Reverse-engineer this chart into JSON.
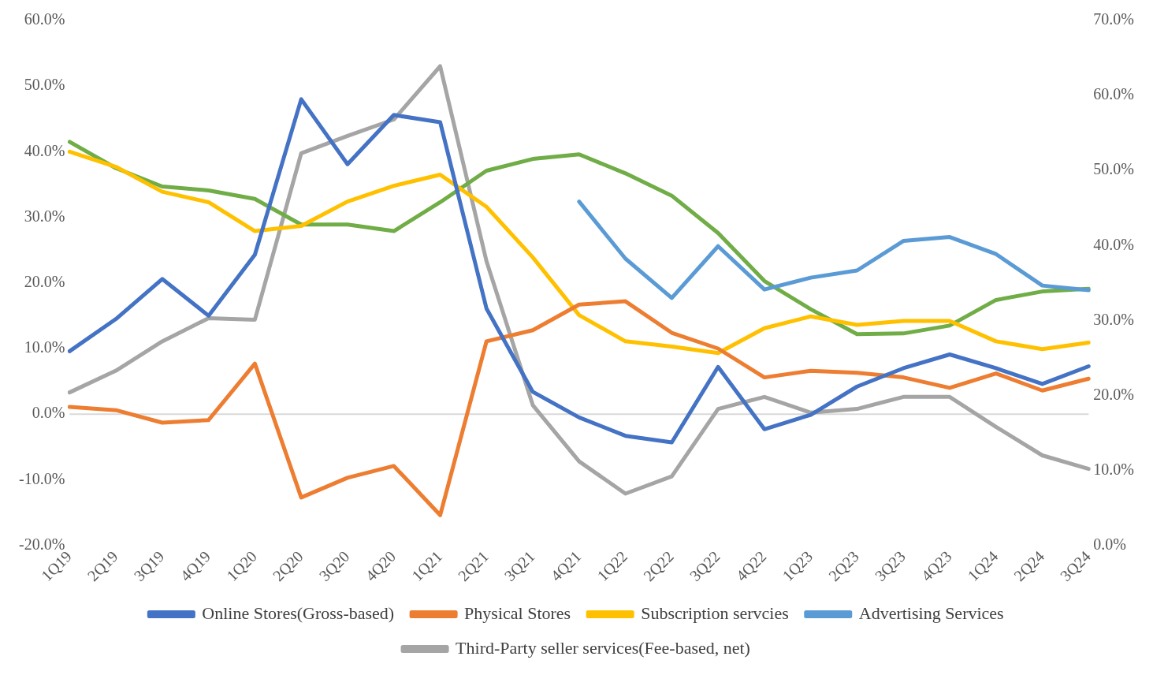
{
  "chart_data": {
    "type": "line",
    "categories": [
      "1Q19",
      "2Q19",
      "3Q19",
      "4Q19",
      "1Q20",
      "2Q20",
      "3Q20",
      "4Q20",
      "1Q21",
      "2Q21",
      "3Q21",
      "4Q21",
      "1Q22",
      "2Q22",
      "3Q22",
      "4Q22",
      "1Q23",
      "2Q23",
      "3Q23",
      "4Q23",
      "1Q24",
      "2Q24",
      "3Q24"
    ],
    "series": [
      {
        "name": "Online Stores(Gross-based)",
        "color": "#4472c4",
        "values": [
          9.6,
          14.5,
          20.6,
          15.0,
          24.3,
          48.0,
          38.1,
          45.6,
          44.5,
          16.1,
          3.4,
          -0.5,
          -3.3,
          -4.3,
          7.2,
          -2.3,
          -0.1,
          4.2,
          7.0,
          9.1,
          7.0,
          4.6,
          7.3
        ]
      },
      {
        "name": "Physical Stores",
        "color": "#ed7d31",
        "values": [
          1.1,
          0.6,
          -1.3,
          -0.9,
          7.7,
          -12.7,
          -9.7,
          -7.9,
          -15.4,
          11.1,
          12.8,
          16.7,
          17.2,
          12.4,
          10.0,
          5.6,
          6.6,
          6.3,
          5.6,
          4.0,
          6.2,
          3.6,
          5.4
        ]
      },
      {
        "name": "Subscription servcies",
        "color": "#ffc000",
        "values": [
          40.0,
          37.7,
          33.9,
          32.3,
          27.9,
          28.7,
          32.4,
          34.8,
          36.5,
          31.6,
          23.9,
          15.1,
          11.1,
          10.3,
          9.3,
          13.1,
          14.9,
          13.6,
          14.2,
          14.2,
          11.1,
          9.9,
          10.9
        ]
      },
      {
        "name": "Advertising Services",
        "color": "#5b9bd5",
        "values": [
          null,
          null,
          null,
          null,
          null,
          null,
          null,
          null,
          null,
          null,
          null,
          32.4,
          23.7,
          17.7,
          25.6,
          19.0,
          20.8,
          21.9,
          26.4,
          27.0,
          24.4,
          19.6,
          18.9
        ]
      },
      {
        "color": "#70ad47",
        "values": [
          41.5,
          37.5,
          34.7,
          34.1,
          32.8,
          28.9,
          28.9,
          27.9,
          32.3,
          37.1,
          38.9,
          39.6,
          36.7,
          33.3,
          27.6,
          20.3,
          16.0,
          12.2,
          12.3,
          13.5,
          17.4,
          18.7,
          19.1
        ]
      },
      {
        "name": "Third-Party seller services(Fee-based, net)",
        "color": "#a5a5a5",
        "axis": "y2",
        "values": [
          20.4,
          23.3,
          27.2,
          30.3,
          30.1,
          52.3,
          54.6,
          56.8,
          63.9,
          37.9,
          18.7,
          11.2,
          6.9,
          9.2,
          18.2,
          19.8,
          17.7,
          18.2,
          19.8,
          19.8,
          15.8,
          12.0,
          10.2
        ]
      }
    ],
    "ylim": [
      -20,
      60
    ],
    "yticks": [
      {
        "value": -20,
        "label": "-20.0%"
      },
      {
        "value": -10,
        "label": "-10.0%"
      },
      {
        "value": 0,
        "label": "0.0%"
      },
      {
        "value": 10,
        "label": "10.0%"
      },
      {
        "value": 20,
        "label": "20.0%"
      },
      {
        "value": 30,
        "label": "30.0%"
      },
      {
        "value": 40,
        "label": "40.0%"
      },
      {
        "value": 50,
        "label": "50.0%"
      },
      {
        "value": 60,
        "label": "60.0%"
      }
    ],
    "y2lim": [
      0,
      70
    ],
    "y2ticks": [
      {
        "value": 0,
        "label": "0.0%"
      },
      {
        "value": 10,
        "label": "10.0%"
      },
      {
        "value": 20,
        "label": "20.0%"
      },
      {
        "value": 30,
        "label": "30.0%"
      },
      {
        "value": 40,
        "label": "40.0%"
      },
      {
        "value": 50,
        "label": "50.0%"
      },
      {
        "value": 60,
        "label": "60.0%"
      },
      {
        "value": 70,
        "label": "70.0%"
      }
    ],
    "ref_lines": [
      {
        "axis": "y",
        "value": 0,
        "color": "#d9d9d9"
      }
    ],
    "grid": false,
    "legend": "bottom",
    "marker": "none",
    "line_style": "solid"
  }
}
